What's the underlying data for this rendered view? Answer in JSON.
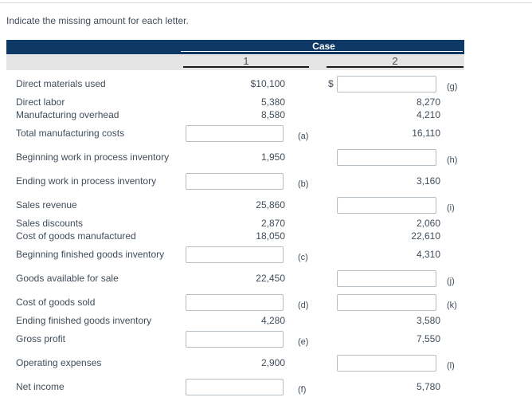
{
  "page": {
    "instruction": "Indicate the missing amount for each letter."
  },
  "table": {
    "header": {
      "case_label": "Case",
      "col1": "1",
      "col2": "2"
    },
    "rows": [
      {
        "label": "Direct materials used",
        "col1": {
          "text": "$10,100"
        },
        "col2": {
          "input": true,
          "prefix": "$",
          "letter": "(g)"
        }
      },
      {
        "label": "Direct labor",
        "col1": {
          "text": "5,380"
        },
        "col2": {
          "text": "8,270"
        }
      },
      {
        "label": "Manufacturing overhead",
        "col1": {
          "text": "8,580"
        },
        "col2": {
          "text": "4,210"
        }
      },
      {
        "label": "Total manufacturing costs",
        "col1": {
          "input": true,
          "letter": "(a)"
        },
        "col2": {
          "text": "16,110"
        }
      },
      {
        "label": "Beginning work in process inventory",
        "col1": {
          "text": "1,950"
        },
        "col2": {
          "input": true,
          "letter": "(h)"
        }
      },
      {
        "label": "Ending work in process inventory",
        "col1": {
          "input": true,
          "letter": "(b)"
        },
        "col2": {
          "text": "3,160"
        }
      },
      {
        "label": "Sales revenue",
        "col1": {
          "text": "25,860"
        },
        "col2": {
          "input": true,
          "letter": "(i)"
        }
      },
      {
        "label": "Sales discounts",
        "col1": {
          "text": "2,870"
        },
        "col2": {
          "text": "2,060"
        }
      },
      {
        "label": "Cost of goods manufactured",
        "col1": {
          "text": "18,050"
        },
        "col2": {
          "text": "22,610"
        }
      },
      {
        "label": "Beginning finished goods inventory",
        "col1": {
          "input": true,
          "letter": "(c)"
        },
        "col2": {
          "text": "4,310"
        }
      },
      {
        "label": "Goods available for sale",
        "col1": {
          "text": "22,450"
        },
        "col2": {
          "input": true,
          "letter": "(j)"
        }
      },
      {
        "label": "Cost of goods sold",
        "col1": {
          "input": true,
          "letter": "(d)"
        },
        "col2": {
          "input": true,
          "letter": "(k)"
        }
      },
      {
        "label": "Ending finished goods inventory",
        "col1": {
          "text": "4,280"
        },
        "col2": {
          "text": "3,580"
        }
      },
      {
        "label": "Gross profit",
        "col1": {
          "input": true,
          "letter": "(e)"
        },
        "col2": {
          "text": "7,550"
        }
      },
      {
        "label": "Operating expenses",
        "col1": {
          "text": "2,900"
        },
        "col2": {
          "input": true,
          "letter": "(l)"
        }
      },
      {
        "label": "Net income",
        "col1": {
          "input": true,
          "letter": "(f)"
        },
        "col2": {
          "text": "5,780"
        }
      }
    ]
  },
  "colors": {
    "header_navy": "#0e3866",
    "header_gray": "#e5e5e6",
    "column_underline": "#1b1b1b",
    "text": "#414d5a",
    "input_border": "#b5bdc5",
    "top_divider": "#dadde0"
  }
}
